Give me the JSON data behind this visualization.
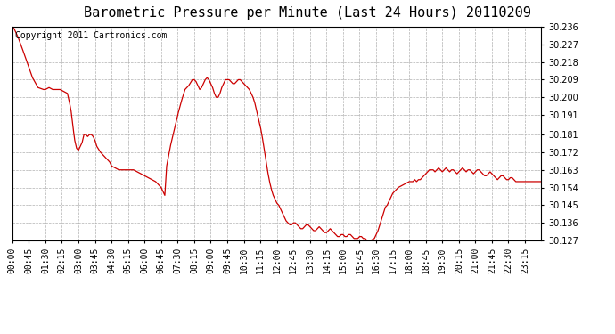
{
  "title": "Barometric Pressure per Minute (Last 24 Hours) 20110209",
  "copyright_text": "Copyright 2011 Cartronics.com",
  "line_color": "#cc0000",
  "background_color": "#ffffff",
  "grid_color": "#b0b0b0",
  "ylim": [
    30.127,
    30.236
  ],
  "yticks": [
    30.127,
    30.136,
    30.145,
    30.154,
    30.163,
    30.172,
    30.181,
    30.191,
    30.2,
    30.209,
    30.218,
    30.227,
    30.236
  ],
  "xtick_labels": [
    "00:00",
    "00:45",
    "01:30",
    "02:15",
    "03:00",
    "03:45",
    "04:30",
    "05:15",
    "06:00",
    "06:45",
    "07:30",
    "08:15",
    "09:00",
    "09:45",
    "10:30",
    "11:15",
    "12:00",
    "12:45",
    "13:30",
    "14:15",
    "15:00",
    "15:45",
    "16:30",
    "17:15",
    "18:00",
    "18:45",
    "19:30",
    "20:15",
    "21:00",
    "21:45",
    "22:30",
    "23:15"
  ],
  "title_fontsize": 11,
  "tick_fontsize": 7,
  "copyright_fontsize": 7,
  "waypoints": [
    [
      0,
      30.236
    ],
    [
      5,
      30.235
    ],
    [
      15,
      30.231
    ],
    [
      25,
      30.226
    ],
    [
      40,
      30.218
    ],
    [
      55,
      30.21
    ],
    [
      70,
      30.205
    ],
    [
      85,
      30.204
    ],
    [
      90,
      30.204
    ],
    [
      100,
      30.205
    ],
    [
      110,
      30.204
    ],
    [
      120,
      30.204
    ],
    [
      130,
      30.204
    ],
    [
      140,
      30.203
    ],
    [
      150,
      30.202
    ],
    [
      155,
      30.198
    ],
    [
      160,
      30.193
    ],
    [
      165,
      30.185
    ],
    [
      170,
      30.178
    ],
    [
      175,
      30.174
    ],
    [
      180,
      30.173
    ],
    [
      185,
      30.175
    ],
    [
      190,
      30.177
    ],
    [
      195,
      30.181
    ],
    [
      200,
      30.181
    ],
    [
      205,
      30.18
    ],
    [
      210,
      30.181
    ],
    [
      215,
      30.181
    ],
    [
      220,
      30.18
    ],
    [
      225,
      30.178
    ],
    [
      230,
      30.175
    ],
    [
      240,
      30.172
    ],
    [
      250,
      30.17
    ],
    [
      255,
      30.169
    ],
    [
      260,
      30.168
    ],
    [
      265,
      30.167
    ],
    [
      270,
      30.165
    ],
    [
      280,
      30.164
    ],
    [
      290,
      30.163
    ],
    [
      300,
      30.163
    ],
    [
      310,
      30.163
    ],
    [
      315,
      30.163
    ],
    [
      320,
      30.163
    ],
    [
      330,
      30.163
    ],
    [
      340,
      30.162
    ],
    [
      350,
      30.161
    ],
    [
      360,
      30.16
    ],
    [
      370,
      30.159
    ],
    [
      380,
      30.158
    ],
    [
      390,
      30.157
    ],
    [
      400,
      30.155
    ],
    [
      405,
      30.154
    ],
    [
      410,
      30.152
    ],
    [
      415,
      30.15
    ],
    [
      420,
      30.165
    ],
    [
      425,
      30.17
    ],
    [
      430,
      30.175
    ],
    [
      440,
      30.183
    ],
    [
      450,
      30.191
    ],
    [
      460,
      30.198
    ],
    [
      470,
      30.204
    ],
    [
      480,
      30.206
    ],
    [
      490,
      30.209
    ],
    [
      495,
      30.209
    ],
    [
      500,
      30.208
    ],
    [
      505,
      30.206
    ],
    [
      510,
      30.204
    ],
    [
      515,
      30.205
    ],
    [
      520,
      30.207
    ],
    [
      525,
      30.209
    ],
    [
      530,
      30.21
    ],
    [
      535,
      30.209
    ],
    [
      540,
      30.207
    ],
    [
      545,
      30.205
    ],
    [
      550,
      30.202
    ],
    [
      555,
      30.2
    ],
    [
      560,
      30.2
    ],
    [
      565,
      30.202
    ],
    [
      570,
      30.205
    ],
    [
      575,
      30.207
    ],
    [
      580,
      30.209
    ],
    [
      585,
      30.209
    ],
    [
      590,
      30.209
    ],
    [
      595,
      30.208
    ],
    [
      600,
      30.207
    ],
    [
      605,
      30.207
    ],
    [
      610,
      30.208
    ],
    [
      615,
      30.209
    ],
    [
      620,
      30.209
    ],
    [
      625,
      30.208
    ],
    [
      630,
      30.207
    ],
    [
      635,
      30.206
    ],
    [
      640,
      30.205
    ],
    [
      645,
      30.204
    ],
    [
      650,
      30.202
    ],
    [
      655,
      30.2
    ],
    [
      660,
      30.197
    ],
    [
      665,
      30.193
    ],
    [
      670,
      30.189
    ],
    [
      675,
      30.185
    ],
    [
      680,
      30.18
    ],
    [
      685,
      30.174
    ],
    [
      690,
      30.168
    ],
    [
      695,
      30.162
    ],
    [
      700,
      30.157
    ],
    [
      705,
      30.153
    ],
    [
      710,
      30.15
    ],
    [
      715,
      30.148
    ],
    [
      720,
      30.146
    ],
    [
      725,
      30.145
    ],
    [
      730,
      30.143
    ],
    [
      735,
      30.141
    ],
    [
      740,
      30.139
    ],
    [
      745,
      30.137
    ],
    [
      750,
      30.136
    ],
    [
      755,
      30.135
    ],
    [
      760,
      30.135
    ],
    [
      765,
      30.136
    ],
    [
      770,
      30.136
    ],
    [
      775,
      30.135
    ],
    [
      780,
      30.134
    ],
    [
      785,
      30.133
    ],
    [
      790,
      30.133
    ],
    [
      795,
      30.134
    ],
    [
      800,
      30.135
    ],
    [
      805,
      30.135
    ],
    [
      810,
      30.134
    ],
    [
      815,
      30.133
    ],
    [
      820,
      30.132
    ],
    [
      825,
      30.132
    ],
    [
      830,
      30.133
    ],
    [
      835,
      30.134
    ],
    [
      840,
      30.133
    ],
    [
      845,
      30.132
    ],
    [
      850,
      30.131
    ],
    [
      855,
      30.131
    ],
    [
      860,
      30.132
    ],
    [
      865,
      30.133
    ],
    [
      870,
      30.132
    ],
    [
      875,
      30.131
    ],
    [
      880,
      30.13
    ],
    [
      885,
      30.129
    ],
    [
      890,
      30.129
    ],
    [
      895,
      30.13
    ],
    [
      900,
      30.13
    ],
    [
      905,
      30.129
    ],
    [
      910,
      30.129
    ],
    [
      915,
      30.13
    ],
    [
      920,
      30.13
    ],
    [
      925,
      30.129
    ],
    [
      930,
      30.128
    ],
    [
      935,
      30.128
    ],
    [
      940,
      30.128
    ],
    [
      945,
      30.129
    ],
    [
      950,
      30.129
    ],
    [
      955,
      30.128
    ],
    [
      960,
      30.128
    ],
    [
      965,
      30.127
    ],
    [
      975,
      30.127
    ],
    [
      985,
      30.128
    ],
    [
      990,
      30.13
    ],
    [
      995,
      30.132
    ],
    [
      1000,
      30.135
    ],
    [
      1005,
      30.138
    ],
    [
      1010,
      30.141
    ],
    [
      1015,
      30.144
    ],
    [
      1020,
      30.145
    ],
    [
      1025,
      30.147
    ],
    [
      1030,
      30.149
    ],
    [
      1035,
      30.151
    ],
    [
      1040,
      30.152
    ],
    [
      1045,
      30.153
    ],
    [
      1050,
      30.154
    ],
    [
      1060,
      30.155
    ],
    [
      1070,
      30.156
    ],
    [
      1080,
      30.157
    ],
    [
      1090,
      30.157
    ],
    [
      1095,
      30.158
    ],
    [
      1100,
      30.157
    ],
    [
      1105,
      30.158
    ],
    [
      1110,
      30.158
    ],
    [
      1115,
      30.159
    ],
    [
      1120,
      30.16
    ],
    [
      1125,
      30.161
    ],
    [
      1130,
      30.162
    ],
    [
      1135,
      30.163
    ],
    [
      1140,
      30.163
    ],
    [
      1145,
      30.163
    ],
    [
      1150,
      30.162
    ],
    [
      1155,
      30.163
    ],
    [
      1160,
      30.164
    ],
    [
      1165,
      30.163
    ],
    [
      1170,
      30.162
    ],
    [
      1175,
      30.163
    ],
    [
      1180,
      30.164
    ],
    [
      1185,
      30.163
    ],
    [
      1190,
      30.162
    ],
    [
      1195,
      30.163
    ],
    [
      1200,
      30.163
    ],
    [
      1205,
      30.162
    ],
    [
      1210,
      30.161
    ],
    [
      1215,
      30.162
    ],
    [
      1220,
      30.163
    ],
    [
      1225,
      30.164
    ],
    [
      1230,
      30.163
    ],
    [
      1235,
      30.162
    ],
    [
      1240,
      30.163
    ],
    [
      1245,
      30.163
    ],
    [
      1250,
      30.162
    ],
    [
      1255,
      30.161
    ],
    [
      1260,
      30.162
    ],
    [
      1265,
      30.163
    ],
    [
      1270,
      30.163
    ],
    [
      1275,
      30.162
    ],
    [
      1280,
      30.161
    ],
    [
      1285,
      30.16
    ],
    [
      1290,
      30.16
    ],
    [
      1295,
      30.161
    ],
    [
      1300,
      30.162
    ],
    [
      1305,
      30.161
    ],
    [
      1310,
      30.16
    ],
    [
      1315,
      30.159
    ],
    [
      1320,
      30.158
    ],
    [
      1325,
      30.159
    ],
    [
      1330,
      30.16
    ],
    [
      1335,
      30.16
    ],
    [
      1340,
      30.159
    ],
    [
      1345,
      30.158
    ],
    [
      1350,
      30.158
    ],
    [
      1355,
      30.159
    ],
    [
      1360,
      30.159
    ],
    [
      1365,
      30.158
    ],
    [
      1370,
      30.157
    ],
    [
      1380,
      30.157
    ],
    [
      1390,
      30.157
    ],
    [
      1400,
      30.157
    ],
    [
      1410,
      30.157
    ],
    [
      1420,
      30.157
    ],
    [
      1430,
      30.157
    ],
    [
      1439,
      30.157
    ]
  ]
}
